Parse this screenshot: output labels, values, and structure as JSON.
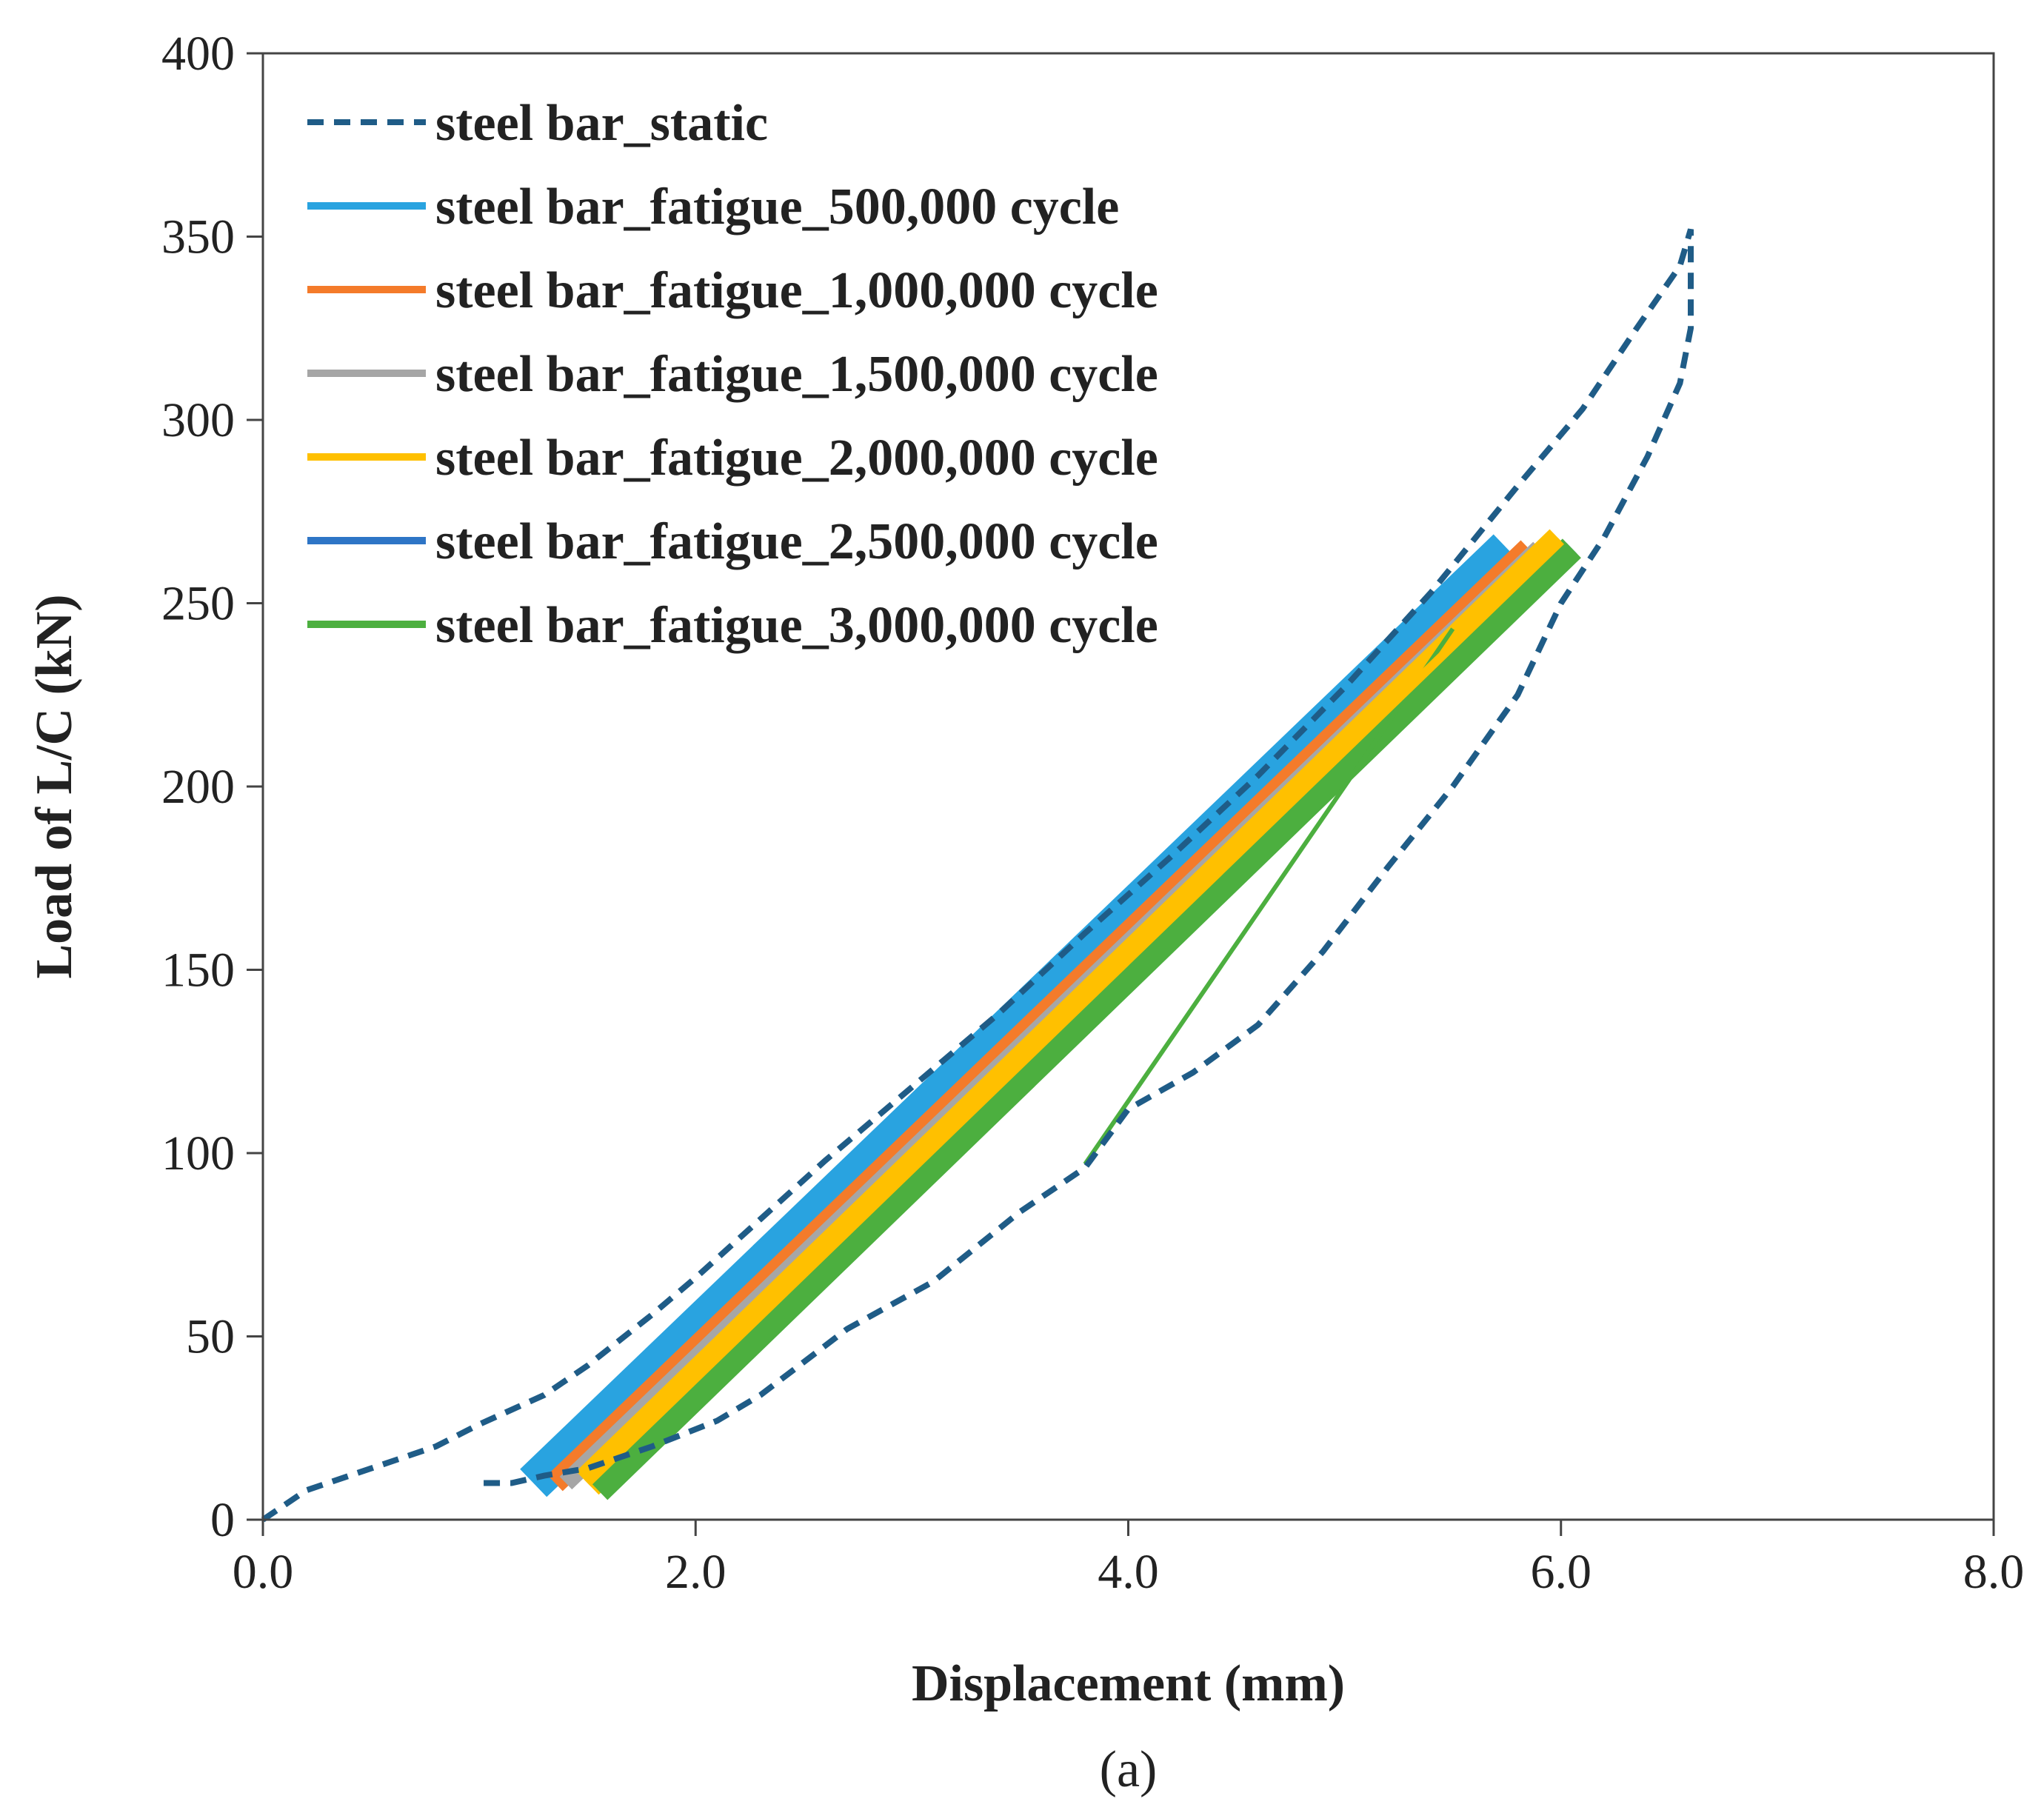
{
  "chart_data": {
    "type": "line",
    "xlabel": "Displacement (mm)",
    "ylabel": "Load of L/C (kN)",
    "caption": "(a)",
    "xlim": [
      0,
      8
    ],
    "ylim": [
      0,
      400
    ],
    "xticks": [
      "0.0",
      "2.0",
      "4.0",
      "6.0",
      "8.0"
    ],
    "yticks": [
      "0",
      "50",
      "100",
      "150",
      "200",
      "250",
      "300",
      "350",
      "400"
    ],
    "legend_position": "top-left",
    "series": [
      {
        "name": "steel bar_static",
        "style": "dashed",
        "color": "#1F5C87",
        "x": [
          0.0,
          0.2,
          0.5,
          0.8,
          1.0,
          1.3,
          1.5,
          1.8,
          2.0,
          2.3,
          2.6,
          3.0,
          3.4,
          3.8,
          4.2,
          4.6,
          5.0,
          5.4,
          5.8,
          6.1,
          6.35,
          6.55,
          6.6,
          6.6,
          6.55,
          6.4,
          6.2,
          6.0,
          5.8,
          5.5,
          5.2,
          4.9,
          4.6,
          4.3,
          4.0,
          3.8,
          3.5,
          3.1,
          2.7,
          2.5,
          2.3,
          2.1,
          1.8,
          1.5,
          1.3,
          1.15,
          1.0
        ],
        "y": [
          0,
          8,
          14,
          20,
          26,
          34,
          42,
          56,
          66,
          82,
          98,
          118,
          138,
          160,
          181,
          203,
          227,
          253,
          282,
          303,
          325,
          342,
          352,
          325,
          310,
          290,
          268,
          250,
          225,
          200,
          178,
          155,
          135,
          122,
          112,
          96,
          84,
          65,
          52,
          43,
          34,
          27,
          20,
          14,
          12,
          10,
          10
        ]
      },
      {
        "name": "steel bar_fatigue_500,000 cycle",
        "style": "band",
        "color": "#29A3E0",
        "x": [
          1.25,
          5.75
        ],
        "y": [
          10,
          265
        ]
      },
      {
        "name": "steel bar_fatigue_1,000,000 cycle",
        "style": "band",
        "color": "#F47B2A",
        "x": [
          1.35,
          5.85
        ],
        "y": [
          10,
          265
        ]
      },
      {
        "name": "steel bar_fatigue_1,500,000 cycle",
        "style": "band",
        "color": "#A6A6A6",
        "x": [
          1.4,
          5.9
        ],
        "y": [
          10,
          265
        ]
      },
      {
        "name": "steel bar_fatigue_2,000,000 cycle",
        "style": "band",
        "color": "#FFC000",
        "x": [
          1.5,
          6.0
        ],
        "y": [
          10,
          267
        ]
      },
      {
        "name": "steel bar_fatigue_2,500,000 cycle",
        "style": "band",
        "color": "#2E75C6",
        "x": [
          1.6,
          6.05
        ],
        "y": [
          10,
          265
        ]
      },
      {
        "name": "steel bar_fatigue_3,000,000 cycle",
        "style": "band",
        "color": "#4CAF3F",
        "x": [
          1.55,
          6.05
        ],
        "y": [
          8,
          265
        ],
        "extra_line": {
          "x": [
            3.8,
            5.5
          ],
          "y": [
            97,
            243
          ]
        }
      }
    ]
  }
}
